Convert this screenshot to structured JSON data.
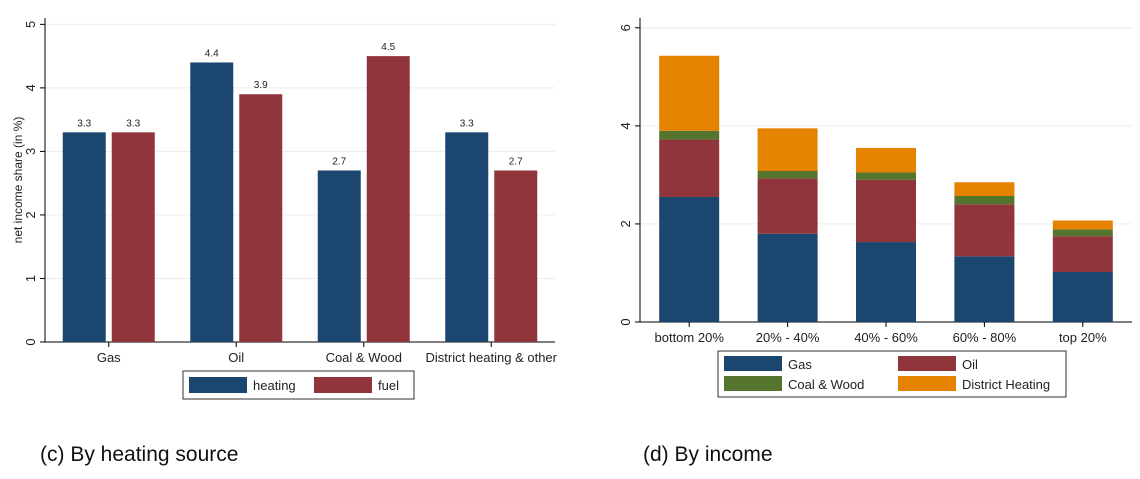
{
  "captions": {
    "left": "(c)  By heating source",
    "right": "(d)  By income"
  },
  "colors": {
    "heating": "#1a4670",
    "fuel": "#90353b",
    "Gas": "#1a4670",
    "Oil": "#90353b",
    "Coal & Wood": "#55752f",
    "District Heating": "#e58200",
    "grid": "#ececec",
    "axis": "#000000"
  },
  "chart_data": [
    {
      "type": "bar",
      "categories": [
        "Gas",
        "Oil",
        "Coal & Wood",
        "District heating & other"
      ],
      "series": [
        {
          "name": "heating",
          "values": [
            3.3,
            4.4,
            2.7,
            3.3
          ],
          "labels": [
            "3.3",
            "4.4",
            "2.7",
            "3.3"
          ]
        },
        {
          "name": "fuel",
          "values": [
            3.3,
            3.9,
            4.5,
            2.7
          ],
          "labels": [
            "3.3",
            "3.9",
            "4.5",
            "2.7"
          ]
        }
      ],
      "ylabel": "net income share (in %)",
      "xlabel": "",
      "yticks": [
        0,
        1,
        2,
        3,
        4,
        5
      ],
      "ylim": [
        0,
        5.1
      ],
      "grid": true,
      "legend_placement": "bottom"
    },
    {
      "type": "bar",
      "stacked": true,
      "categories": [
        "bottom 20%",
        "20% - 40%",
        "40% - 60%",
        "60% - 80%",
        "top 20%"
      ],
      "series": [
        {
          "name": "Gas",
          "values": [
            2.55,
            1.8,
            1.63,
            1.34,
            1.02
          ]
        },
        {
          "name": "Oil",
          "values": [
            1.17,
            1.13,
            1.27,
            1.06,
            0.73
          ]
        },
        {
          "name": "Coal & Wood",
          "values": [
            0.18,
            0.15,
            0.15,
            0.17,
            0.14
          ]
        },
        {
          "name": "District Heating",
          "values": [
            1.53,
            0.87,
            0.5,
            0.28,
            0.18
          ]
        }
      ],
      "ylabel": "",
      "xlabel": "",
      "yticks": [
        0,
        2,
        4,
        6
      ],
      "ylim": [
        0,
        6.2
      ],
      "grid": true,
      "legend_placement": "bottom"
    }
  ]
}
